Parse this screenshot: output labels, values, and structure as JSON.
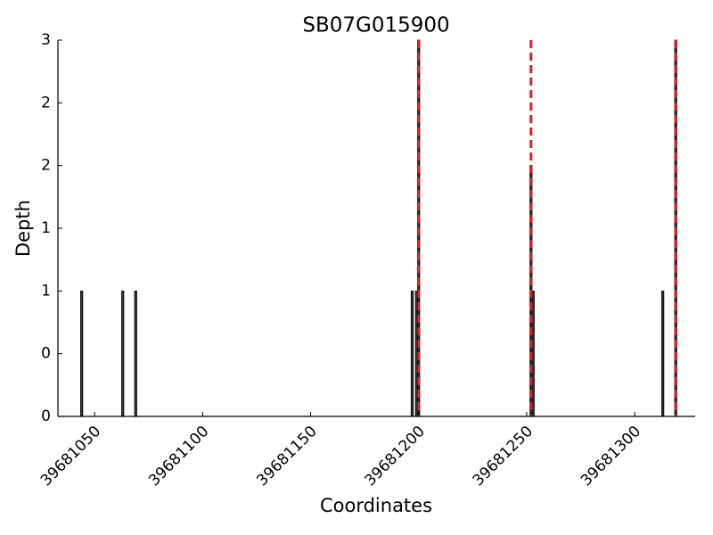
{
  "chart_data": {
    "type": "bar",
    "title": "SB07G015900",
    "x_label": "Coordinates",
    "y_label": "Depth",
    "x": [
      39681044,
      39681063,
      39681069,
      39681197,
      39681199,
      39681200,
      39681252,
      39681253,
      39681313,
      39681319
    ],
    "values": [
      1,
      1,
      1,
      1,
      1,
      3,
      2,
      1,
      1,
      3
    ],
    "color": "#333333",
    "markers": [
      39681200,
      39681252,
      39681319
    ],
    "marker_color": "#e41a1c",
    "xlim": [
      39681033,
      39681328
    ],
    "xticks": [
      39681050,
      39681100,
      39681150,
      39681200,
      39681250,
      39681300
    ],
    "ylim": [
      0,
      3
    ],
    "yticks": [
      0,
      {
        "value": 0.5,
        "label": "0"
      },
      1,
      {
        "value": 1.5,
        "label": "1"
      },
      2,
      {
        "value": 2.5,
        "label": "2"
      },
      3
    ]
  }
}
